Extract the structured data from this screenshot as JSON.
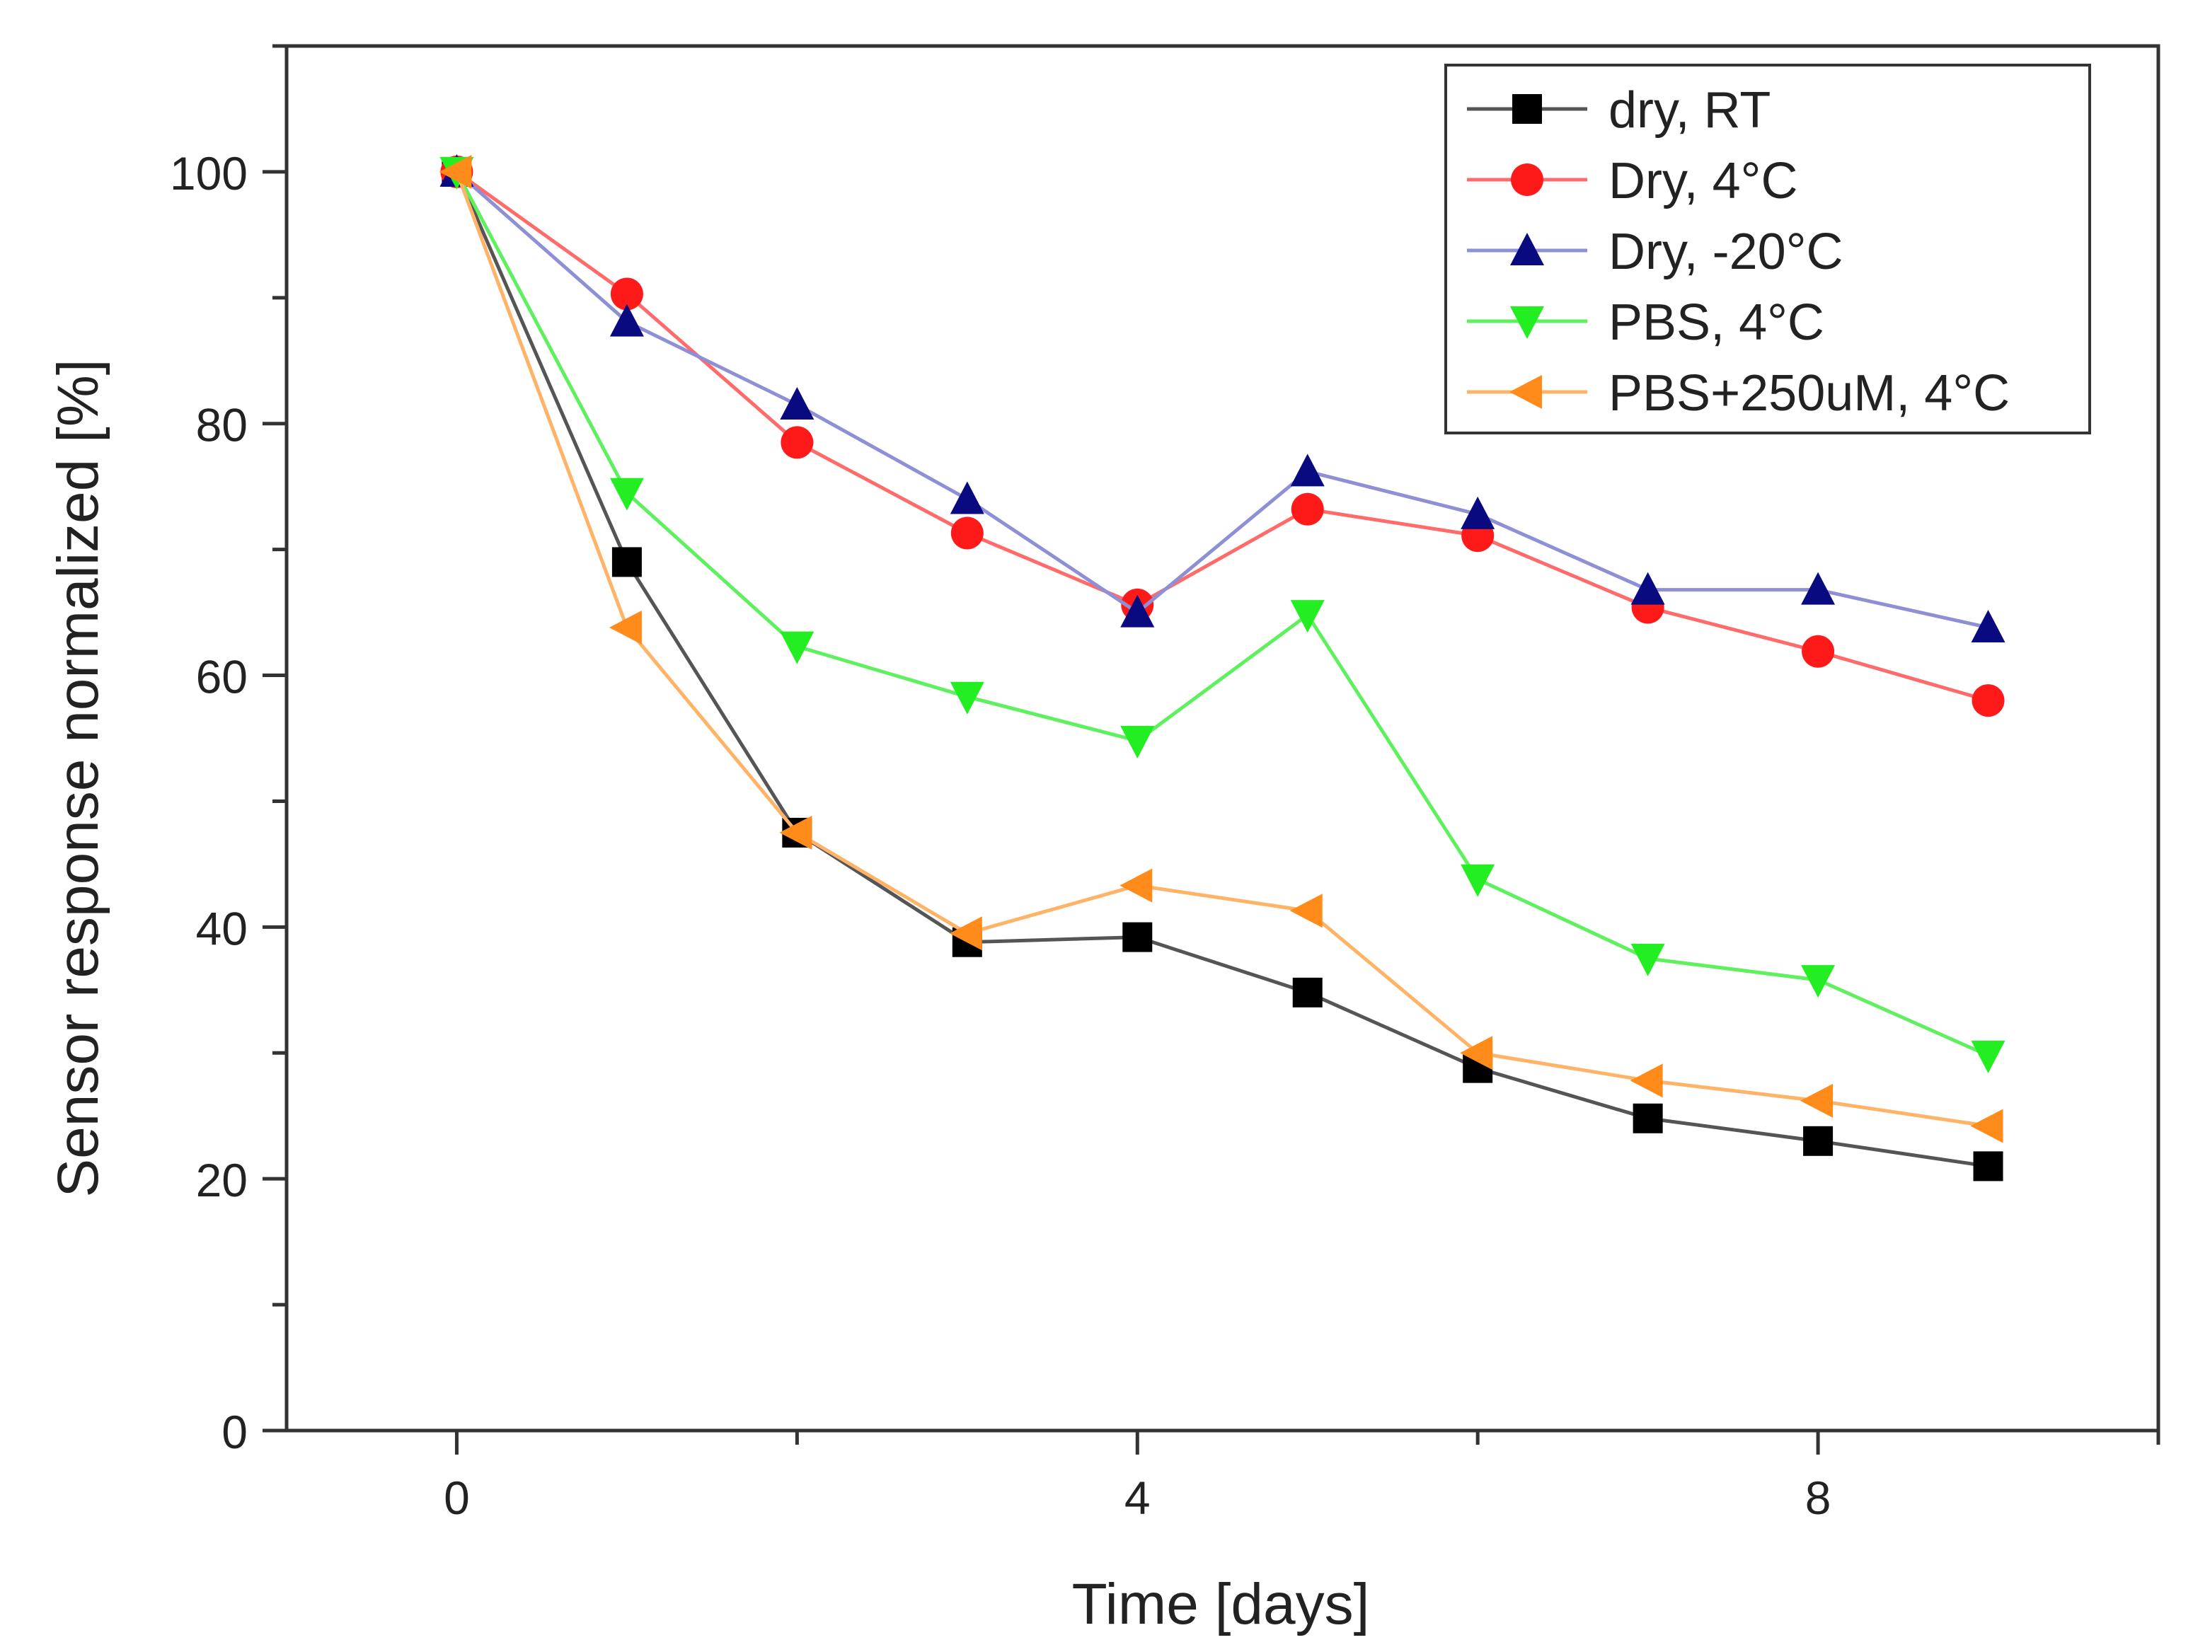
{
  "chart_data": {
    "type": "line",
    "title": "",
    "xlabel": "Time [days]",
    "ylabel": "Sensor response normalized [%]",
    "xlim": [
      -1,
      10
    ],
    "ylim": [
      0,
      110
    ],
    "x_ticks": [
      0,
      4,
      8
    ],
    "x_tick_labels": [
      "0",
      "4",
      "8"
    ],
    "y_ticks": [
      0,
      20,
      40,
      60,
      80,
      100
    ],
    "y_tick_labels": [
      "0",
      "20",
      "40",
      "60",
      "80",
      "100"
    ],
    "grid": false,
    "legend_position": "top-right",
    "x": [
      0,
      1,
      2,
      3,
      4,
      5,
      6,
      7,
      8,
      9
    ],
    "series": [
      {
        "name": "dry, RT",
        "color": "#000000",
        "line_color": "#555555",
        "marker": "square",
        "values": [
          100,
          69,
          47.5,
          38.8,
          39.2,
          34.8,
          28.8,
          24.8,
          23,
          21
        ]
      },
      {
        "name": "Dry, 4°C",
        "color": "#ff1a1a",
        "line_color": "#ff6a6a",
        "marker": "circle",
        "values": [
          100,
          90.3,
          78.5,
          71.3,
          65.6,
          73.2,
          71.1,
          65.4,
          61.9,
          58
        ]
      },
      {
        "name": "Dry, -20°C",
        "color": "#0a0a80",
        "line_color": "#8f8fd6",
        "marker": "triangle-up",
        "values": [
          100,
          88.1,
          81.5,
          74,
          65,
          76.2,
          72.8,
          66.8,
          66.8,
          63.8
        ]
      },
      {
        "name": "PBS, 4°C",
        "color": "#22ee22",
        "line_color": "#5ef05e",
        "marker": "triangle-down",
        "values": [
          100,
          74.5,
          62.3,
          58.3,
          54.8,
          64.8,
          43.8,
          37.5,
          35.8,
          29.8
        ]
      },
      {
        "name": "PBS+250uM, 4°C",
        "color": "#ff8c1a",
        "line_color": "#ffb366",
        "marker": "triangle-left",
        "values": [
          100,
          63.8,
          47.5,
          39.5,
          43.3,
          41.3,
          30,
          27.8,
          26.2,
          24.2
        ]
      }
    ]
  }
}
